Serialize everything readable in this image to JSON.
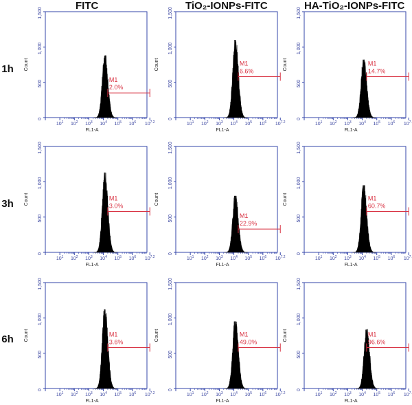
{
  "colors": {
    "axis": "#3344aa",
    "histogram": "#000000",
    "gate": "#d83040",
    "tick_text": "#3a45a0"
  },
  "columns": [
    "FITC",
    "TiO₂-IONPs-FITC",
    "HA-TiO₂-IONPs-FITC"
  ],
  "rows": [
    "1h",
    "3h",
    "6h"
  ],
  "chart_data": {
    "type": "histogram-grid",
    "xlabel": "FL1-A",
    "ylabel": "Count",
    "x_scale": "log",
    "xlim": [
      1,
      10000000
    ],
    "ylim": [
      0,
      1500
    ],
    "y_ticks": [
      0,
      500,
      1000,
      1500
    ],
    "y_tick_labels": [
      "0",
      "500",
      "1,000",
      "1,500"
    ],
    "x_tick_labels": [
      "10^1",
      "10^2",
      "10^3",
      "10^4",
      "10^5",
      "10^6",
      "10^7.2"
    ],
    "panels": [
      {
        "row": "1h",
        "column": "FITC",
        "peak_log": 4.1,
        "peak_count": 880,
        "gate_name": "M1",
        "gate_percent": "2.0%",
        "gate_start_log": 4.3,
        "gate_end_log": 7.2,
        "gate_level": 350
      },
      {
        "row": "1h",
        "column": "TiO2-IONPs-FITC",
        "peak_log": 4.1,
        "peak_count": 1100,
        "gate_name": "M1",
        "gate_percent": "6.6%",
        "gate_start_log": 4.3,
        "gate_end_log": 7.2,
        "gate_level": 580
      },
      {
        "row": "1h",
        "column": "HA-TiO2-IONPs-FITC",
        "peak_log": 4.1,
        "peak_count": 820,
        "gate_name": "M1",
        "gate_percent": "14.7%",
        "gate_start_log": 4.3,
        "gate_end_log": 7.2,
        "gate_level": 580
      },
      {
        "row": "3h",
        "column": "FITC",
        "peak_log": 4.1,
        "peak_count": 1130,
        "gate_name": "M1",
        "gate_percent": "3.0%",
        "gate_start_log": 4.3,
        "gate_end_log": 7.2,
        "gate_level": 580
      },
      {
        "row": "3h",
        "column": "TiO2-IONPs-FITC",
        "peak_log": 4.1,
        "peak_count": 800,
        "gate_name": "M1",
        "gate_percent": "22.9%",
        "gate_start_log": 4.3,
        "gate_end_log": 7.2,
        "gate_level": 330
      },
      {
        "row": "3h",
        "column": "HA-TiO2-IONPs-FITC",
        "peak_log": 4.1,
        "peak_count": 950,
        "gate_name": "M1",
        "gate_percent": "60.7%",
        "gate_start_log": 4.3,
        "gate_end_log": 7.2,
        "gate_level": 580
      },
      {
        "row": "6h",
        "column": "FITC",
        "peak_log": 4.1,
        "peak_count": 1120,
        "gate_name": "M1",
        "gate_percent": "3.6%",
        "gate_start_log": 4.3,
        "gate_end_log": 7.2,
        "gate_level": 580
      },
      {
        "row": "6h",
        "column": "TiO2-IONPs-FITC",
        "peak_log": 4.1,
        "peak_count": 950,
        "gate_name": "M1",
        "gate_percent": "49.0%",
        "gate_start_log": 4.3,
        "gate_end_log": 7.2,
        "gate_level": 580
      },
      {
        "row": "6h",
        "column": "HA-TiO2-IONPs-FITC",
        "peak_log": 4.3,
        "peak_count": 840,
        "gate_name": "M1",
        "gate_percent": "96.6%",
        "gate_start_log": 4.3,
        "gate_end_log": 7.2,
        "gate_level": 580
      }
    ]
  }
}
